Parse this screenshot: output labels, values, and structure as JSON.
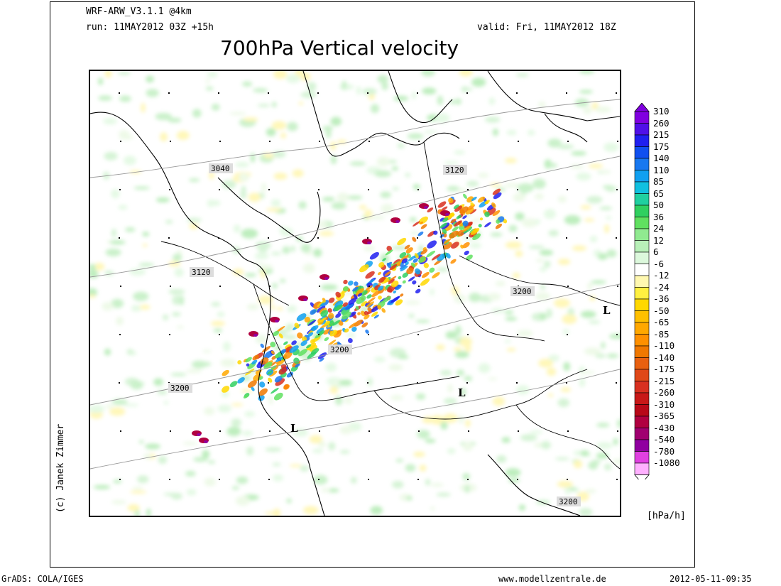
{
  "header": {
    "model": "WRF-ARW_V3.1.1 @4km",
    "run": "run: 11MAY2012 03Z +15h",
    "valid": "valid: Fri, 11MAY2012 18Z",
    "title": "700hPa Vertical velocity"
  },
  "credit": "(c) Janek Zimmer",
  "footer": {
    "grads": "GrADS: COLA/IGES",
    "site": "www.modellzentrale.de",
    "timestamp": "2012-05-11-09:35"
  },
  "colorbar": {
    "unit": "[hPa/h]",
    "levels": [
      "310",
      "260",
      "215",
      "175",
      "140",
      "110",
      "85",
      "65",
      "50",
      "36",
      "24",
      "12",
      "6",
      "-6",
      "-12",
      "-24",
      "-36",
      "-50",
      "-65",
      "-85",
      "-110",
      "-140",
      "-175",
      "-215",
      "-260",
      "-310",
      "-365",
      "-430",
      "-540",
      "-780",
      "-1080"
    ],
    "colors": [
      "#8000e0",
      "#5010e8",
      "#2020f0",
      "#1050f0",
      "#1878f0",
      "#10a0f0",
      "#10c0e0",
      "#20d0a0",
      "#30d060",
      "#60e060",
      "#90ea90",
      "#b8f0b8",
      "#dcf8dc",
      "#ffffff",
      "#fff8b0",
      "#fff040",
      "#ffd800",
      "#ffc000",
      "#ffa800",
      "#ff9000",
      "#f07800",
      "#e86010",
      "#e04818",
      "#d83020",
      "#c81818",
      "#b80818",
      "#b00040",
      "#a00070",
      "#9000a0",
      "#e040e0",
      "#ffb0ff"
    ],
    "top_arrow_color": "#8000e0",
    "bottom_arrow_color": "#ffffff"
  },
  "map": {
    "contour_labels": [
      "3040",
      "3120",
      "3120",
      "3200",
      "3200",
      "3200",
      "3200"
    ],
    "low_markers": [
      "L",
      "L",
      "L"
    ]
  }
}
